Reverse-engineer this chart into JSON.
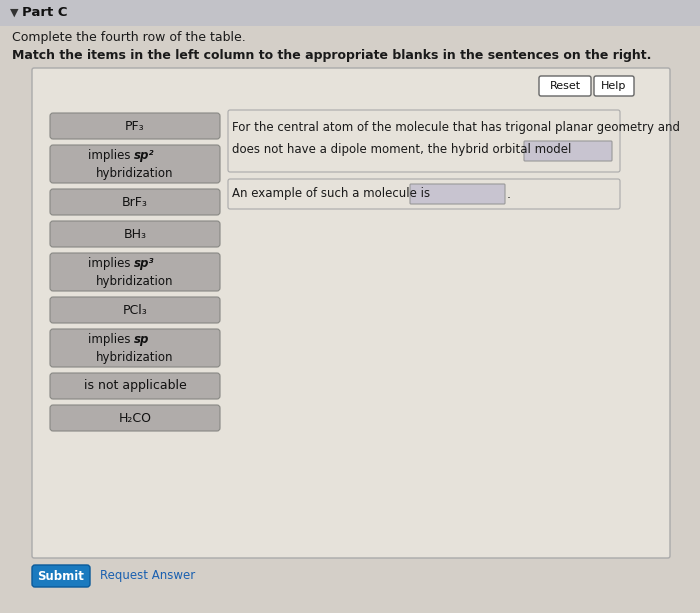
{
  "title_part": "Part C",
  "instruction1": "Complete the fourth row of the table.",
  "instruction2": "Match the items in the left column to the appropriate blanks in the sentences on the right.",
  "bg_color": "#d4cfc8",
  "panel_bg": "#e6e2da",
  "button_bg": "#b0acaa",
  "button_border": "#888884",
  "left_items": [
    {
      "text": "PF₃",
      "type": "simple"
    },
    {
      "line1_pre": "implies ",
      "line1_sp": "sp²",
      "line2": "hybridization",
      "type": "implies"
    },
    {
      "text": "BrF₃",
      "type": "simple"
    },
    {
      "text": "BH₃",
      "type": "simple"
    },
    {
      "line1_pre": "implies ",
      "line1_sp": "sp³",
      "line2": "hybridization",
      "type": "implies"
    },
    {
      "text": "PCl₃",
      "type": "simple"
    },
    {
      "line1_pre": "implies ",
      "line1_sp": "sp",
      "line2": "hybridization",
      "type": "implies"
    },
    {
      "text": "is not applicable",
      "type": "simple"
    },
    {
      "text": "H₂CO",
      "type": "simple"
    }
  ],
  "right_text1": "For the central atom of the molecule that has trigonal planar geometry and",
  "right_text2": "does not have a dipole moment, the hybrid orbital model",
  "right_text3": "An example of such a molecule is",
  "blank_color": "#c8c4d0",
  "submit_color": "#1a7abf",
  "submit_text": "Submit",
  "request_text": "Request Answer",
  "reset_text": "Reset",
  "help_text": "Help",
  "header_color": "#c2c2c8"
}
